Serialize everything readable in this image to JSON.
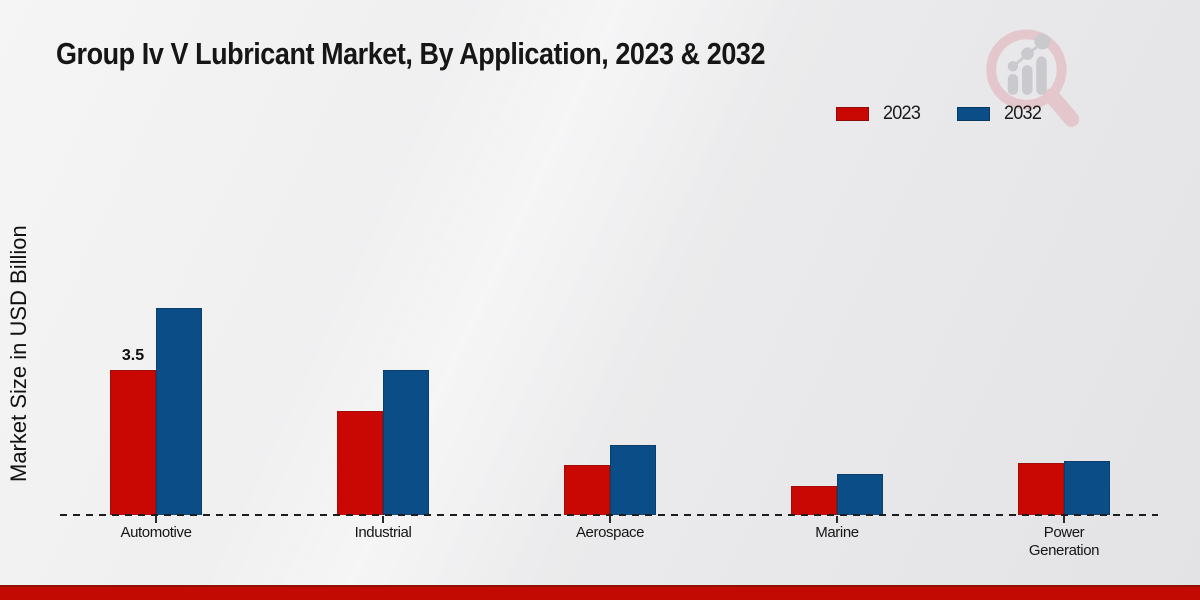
{
  "title": "Group Iv V Lubricant Market, By Application, 2023 & 2032",
  "ylabel": "Market Size in USD Billion",
  "legend": {
    "items": [
      {
        "label": "2023",
        "color": "#c90804",
        "border": "#8f0b06"
      },
      {
        "label": "2032",
        "color": "#0b4d86",
        "border": "#083a61"
      }
    ]
  },
  "logo": {
    "name": "magnifier-bar-chart-watermark",
    "circle_color": "#e3c4c9",
    "bars_color": "#c6c6cb"
  },
  "footer_bar": {
    "color": "#c20a03",
    "top_edge_color": "#8f1206"
  },
  "chart_data": {
    "type": "bar",
    "title": "Group Iv V Lubricant Market, By Application, 2023 & 2032",
    "categories": [
      "Automotive",
      "Industrial",
      "Aerospace",
      "Marine",
      "Power Generation"
    ],
    "series": [
      {
        "name": "2023",
        "color": "#c90804",
        "edge_color": "#a30d08",
        "values": [
          3.5,
          2.5,
          1.2,
          0.7,
          1.25
        ],
        "value_labels": [
          "3.5",
          "",
          "",
          "",
          ""
        ]
      },
      {
        "name": "2032",
        "color": "#0b4d86",
        "edge_color": "#0a3e6b",
        "values": [
          5.0,
          3.5,
          1.7,
          1.0,
          1.3
        ],
        "value_labels": [
          "",
          "",
          "",
          "",
          ""
        ]
      }
    ],
    "xlabel": "",
    "ylabel": "Market Size in USD Billion",
    "ylim": [
      0,
      5.5
    ],
    "grid": false,
    "legend_position": "top-right",
    "baseline_style": "dashed",
    "value_label_note": "only Automotive 2023 bar is annotated with its value"
  }
}
